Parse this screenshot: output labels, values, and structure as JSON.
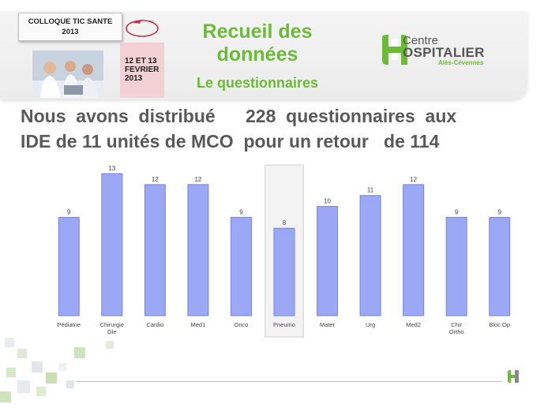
{
  "header": {
    "event_title_line1": "COLLOQUE TIC SANTE",
    "event_title_line2": "2013",
    "event_dates": [
      "12 ET 13",
      "FEVRIER",
      "2013"
    ],
    "slide_title": [
      "Recueil des",
      "données"
    ],
    "slide_subtitle": "Le questionnaires",
    "hospital_logo": {
      "line1": "Centre",
      "line2": "OSPITALIER",
      "line3": "Alès-Cévennes"
    }
  },
  "body": {
    "line1": "Nous  avons  distribué      228  questionnaires  aux",
    "line2": "IDE de 11 unités de MCO  pour un retour   de 114"
  },
  "chart_data": {
    "type": "bar",
    "categories": [
      "Pédiatrie",
      "Chirurgie Gle",
      "Cardio",
      "Med1",
      "Onco",
      "Pneumo",
      "Mater",
      "Urg",
      "Med2",
      "Chir Ortho",
      "Bloc Op"
    ],
    "category_lines": [
      [
        "Pédiatrie"
      ],
      [
        "Chirurgie",
        "Gle"
      ],
      [
        "Cardio"
      ],
      [
        "Med1"
      ],
      [
        "Onco"
      ],
      [
        "Pneumo"
      ],
      [
        "Mater"
      ],
      [
        "Urg"
      ],
      [
        "Med2"
      ],
      [
        "Chir",
        "Ortho"
      ],
      [
        "Bloc Op"
      ]
    ],
    "values": [
      9,
      13,
      12,
      12,
      9,
      8,
      10,
      11,
      12,
      9,
      9
    ],
    "highlighted_category": "Pneumo",
    "ylim": [
      0,
      13
    ],
    "bar_color": "#9aa8f6",
    "bar_border_color": "#7683e0",
    "highlight_fill": "#f3f3f3"
  },
  "colors": {
    "accent_green": "#6bbb35",
    "text_gray": "#595959",
    "date_box": "#f2d1d4"
  }
}
